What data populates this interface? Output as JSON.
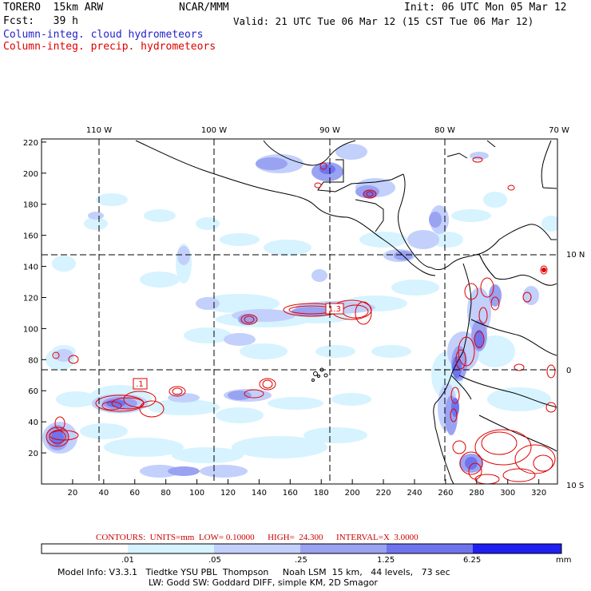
{
  "header": {
    "model": "TORERO  15km ARW",
    "org": "NCAR/MMM",
    "init": "Init: 06 UTC Mon 05 Mar 12",
    "fcst": "Fcst:   39 h",
    "valid": "Valid: 21 UTC Tue 06 Mar 12 (15 CST Tue 06 Mar 12)",
    "field1": "Column-integ. cloud hydrometeors",
    "field2": "Column-integ. precip. hydrometeors"
  },
  "colors": {
    "cloud_field": "#2222cc",
    "precip_field": "#e00000",
    "coast": "#000000",
    "shade1": "#d6f3ff",
    "shade2": "#c2d0fb",
    "shade3": "#9aa2f2",
    "shade4": "#6f73ee",
    "shade5": "#2020f0"
  },
  "map": {
    "lon_labels": [
      "110 W",
      "100 W",
      "90 W",
      "80 W",
      "70 W"
    ],
    "lat_labels": [
      "10 N",
      "0",
      "10 S"
    ],
    "x_ticks": [
      "20",
      "40",
      "60",
      "80",
      "100",
      "120",
      "140",
      "160",
      "180",
      "200",
      "220",
      "240",
      "260",
      "280",
      "300",
      "320"
    ],
    "y_ticks": [
      "20",
      "40",
      "60",
      "80",
      "100",
      "120",
      "140",
      "160",
      "180",
      "200",
      "220"
    ],
    "contour_labels": [
      ".1",
      "1.3"
    ]
  },
  "contour_info": "CONTOURS:  UNITS=mm  LOW= 0.10000      HIGH=  24.300      INTERVAL=X  3.0000",
  "colorbar": {
    "labels": [
      ".01",
      ".05",
      ".25",
      "1.25",
      "6.25"
    ],
    "units": "mm"
  },
  "footer": {
    "line1": "Model Info: V3.3.1   Tiedtke YSU PBL  Thompson     Noah LSM  15 km,   44 levels,   73 sec",
    "line2": "LW: Godd SW: Goddard DIFF, simple KM, 2D Smagor"
  }
}
